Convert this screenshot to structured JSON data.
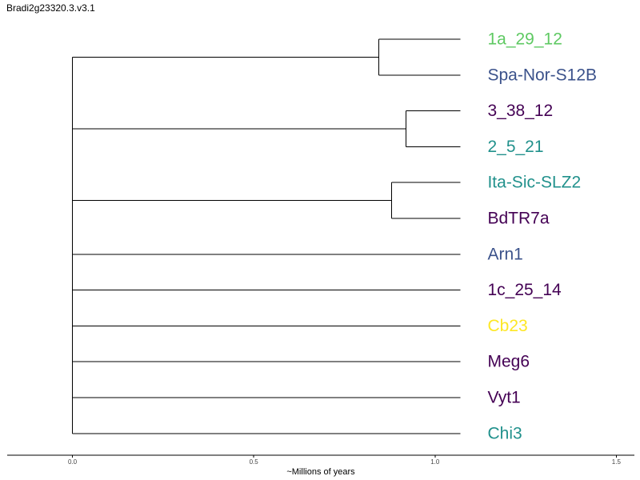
{
  "title": "Bradi2g23320.3.v3.1",
  "tree": {
    "leaves": [
      {
        "name": "1a_29_12",
        "color": "#5ec962"
      },
      {
        "name": "Spa-Nor-S12B",
        "color": "#3b528b"
      },
      {
        "name": "3_38_12",
        "color": "#440154"
      },
      {
        "name": "2_5_21",
        "color": "#21918c"
      },
      {
        "name": "Ita-Sic-SLZ2",
        "color": "#21918c"
      },
      {
        "name": "BdTR7a",
        "color": "#440154"
      },
      {
        "name": "Arn1",
        "color": "#3b528b"
      },
      {
        "name": "1c_25_14",
        "color": "#440154"
      },
      {
        "name": "Cb23",
        "color": "#fde725"
      },
      {
        "name": "Meg6",
        "color": "#440154"
      },
      {
        "name": "Vyt1",
        "color": "#440154"
      },
      {
        "name": "Chi3",
        "color": "#21918c"
      }
    ],
    "root_age": 0.0,
    "leaf_age": 1.07,
    "clades": [
      {
        "members": [
          "1a_29_12",
          "Spa-Nor-S12B"
        ],
        "node_age": 0.845
      },
      {
        "members": [
          "3_38_12",
          "2_5_21"
        ],
        "node_age": 0.92
      },
      {
        "members": [
          "Ita-Sic-SLZ2",
          "BdTR7a"
        ],
        "node_age": 0.88
      }
    ]
  },
  "axis": {
    "title": "~Millions of years",
    "range": [
      -0.18,
      1.55
    ],
    "ticks": [
      {
        "value": 0.0,
        "label": "0.0"
      },
      {
        "value": 0.5,
        "label": "0.5"
      },
      {
        "value": 1.0,
        "label": "1.0"
      },
      {
        "value": 1.5,
        "label": "1.5"
      }
    ]
  }
}
